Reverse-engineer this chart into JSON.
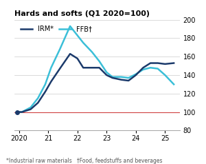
{
  "title": "Hards and softs (Q1 2020=100)",
  "irm_label": "IRM*",
  "ffb_label": "FFB†",
  "irm_color": "#1b3a6b",
  "ffb_color": "#3bbfd8",
  "ref_color": "#d04040",
  "background_color": "#ffffff",
  "ylim": [
    80,
    200
  ],
  "yticks": [
    80,
    100,
    120,
    140,
    160,
    180,
    200
  ],
  "xlim": [
    -0.15,
    5.5
  ],
  "xticks": [
    0,
    1,
    2,
    3,
    4,
    5
  ],
  "xticklabels": [
    "2020",
    "21",
    "22",
    "23",
    "24",
    "25"
  ],
  "footnote": "*Industrial raw materials   †Food, feedstuffs and beverages",
  "irm_x": [
    -0.05,
    0.1,
    0.4,
    0.65,
    0.9,
    1.1,
    1.4,
    1.75,
    2.0,
    2.2,
    2.5,
    2.75,
    3.0,
    3.2,
    3.5,
    3.75,
    4.0,
    4.25,
    4.5,
    4.75,
    5.0,
    5.3
  ],
  "irm_y": [
    100,
    100,
    103,
    110,
    122,
    133,
    147,
    163,
    158,
    148,
    148,
    148,
    140,
    137,
    135,
    134,
    140,
    148,
    153,
    153,
    152,
    153
  ],
  "ffb_x": [
    -0.05,
    0.1,
    0.4,
    0.65,
    0.9,
    1.1,
    1.4,
    1.75,
    2.0,
    2.2,
    2.5,
    2.75,
    3.0,
    3.2,
    3.5,
    3.75,
    4.0,
    4.25,
    4.5,
    4.75,
    5.0,
    5.3
  ],
  "ffb_y": [
    100,
    100,
    105,
    115,
    130,
    148,
    168,
    193,
    183,
    175,
    165,
    155,
    143,
    138,
    138,
    137,
    141,
    146,
    148,
    147,
    140,
    130
  ]
}
